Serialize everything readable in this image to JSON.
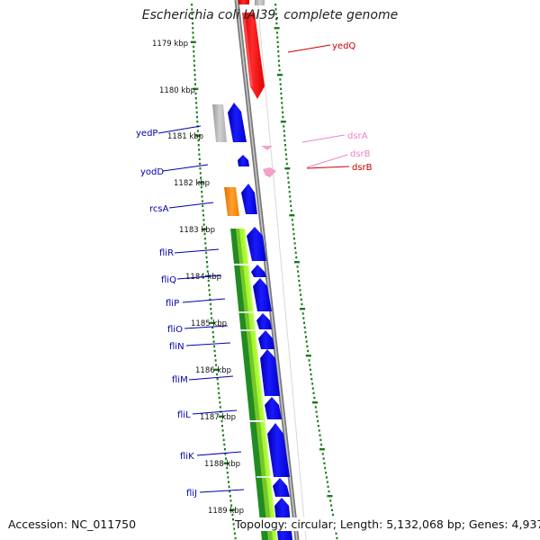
{
  "title": "Escherichia coli IAI39, complete genome",
  "accession": "Accession: NC_011750",
  "summary": "Topology: circular; Length: 5,132,068 bp; Genes: 4,937",
  "scale_labels": [
    "1179 kbp",
    "1180 kbp",
    "1181 kbp",
    "1182 kbp",
    "1183 kbp",
    "1184 kbp",
    "1185 kbp",
    "1186 kbp",
    "1187 kbp",
    "1188 kbp",
    "1189 kbp"
  ],
  "colors": {
    "cds_forward": "#0000ee",
    "cds_reverse": "#ee0000",
    "rna": "#f4a0c8",
    "hypothetical": "#b4b4b4",
    "regulator": "#ff8c00",
    "flagellar_dark": "#228b22",
    "flagellar_light": "#adff2f",
    "label_left": "#0000aa",
    "label_right": "#cc0000",
    "label_rna": "#ee82c8",
    "tick": "#1a7a1a",
    "backbone": "#808080"
  },
  "genes_left": [
    {
      "name": "yedP"
    },
    {
      "name": "yodD"
    },
    {
      "name": "rcsA"
    },
    {
      "name": "fliR"
    },
    {
      "name": "fliQ"
    },
    {
      "name": "fliP"
    },
    {
      "name": "fliO"
    },
    {
      "name": "fliN"
    },
    {
      "name": "fliM"
    },
    {
      "name": "fliL"
    },
    {
      "name": "fliK"
    },
    {
      "name": "fliJ"
    }
  ],
  "genes_right": [
    {
      "name": "yedQ"
    },
    {
      "name": "dsrA"
    },
    {
      "name": "dsrB"
    },
    {
      "name": "dsrB"
    }
  ]
}
